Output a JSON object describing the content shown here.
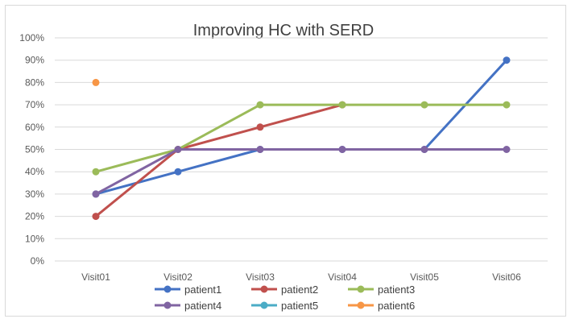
{
  "chart_data": {
    "type": "line",
    "title": "Improving HC with SERD",
    "xlabel": "",
    "ylabel": "",
    "categories": [
      "Visit01",
      "Visit02",
      "Visit03",
      "Visit04",
      "Visit05",
      "Visit06"
    ],
    "ylim": [
      0,
      1
    ],
    "y_ticks": [
      "0%",
      "10%",
      "20%",
      "30%",
      "40%",
      "50%",
      "60%",
      "70%",
      "80%",
      "90%",
      "100%"
    ],
    "grid": true,
    "legend_position": "bottom",
    "series": [
      {
        "name": "patient1",
        "color": "#4472c4",
        "values": [
          0.3,
          0.4,
          0.5,
          0.5,
          0.5,
          0.9
        ]
      },
      {
        "name": "patient2",
        "color": "#c0504d",
        "values": [
          0.2,
          0.5,
          0.6,
          0.7,
          null,
          null
        ]
      },
      {
        "name": "patient3",
        "color": "#9bbb59",
        "values": [
          0.4,
          0.5,
          0.7,
          0.7,
          0.7,
          0.7
        ]
      },
      {
        "name": "patient4",
        "color": "#8064a2",
        "values": [
          0.3,
          0.5,
          0.5,
          0.5,
          0.5,
          0.5
        ]
      },
      {
        "name": "patient5",
        "color": "#4bacc6",
        "values": [
          null,
          null,
          null,
          null,
          null,
          null
        ]
      },
      {
        "name": "patient6",
        "color": "#f79646",
        "values": [
          0.8,
          null,
          null,
          null,
          null,
          null
        ]
      }
    ]
  }
}
